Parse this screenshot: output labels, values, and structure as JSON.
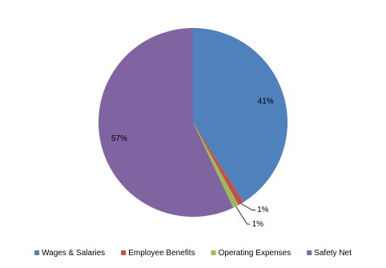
{
  "chart_data": {
    "type": "pie",
    "categories": [
      "Wages & Salaries",
      "Employee Benefits",
      "Operating Expenses",
      "Safety Net"
    ],
    "values": [
      41,
      1,
      1,
      57
    ],
    "value_labels": [
      "41%",
      "1%",
      "1%",
      "57%"
    ],
    "colors": [
      "#4f81bd",
      "#c0504d",
      "#9bbb59",
      "#8064a2"
    ],
    "legend": "bottom"
  }
}
